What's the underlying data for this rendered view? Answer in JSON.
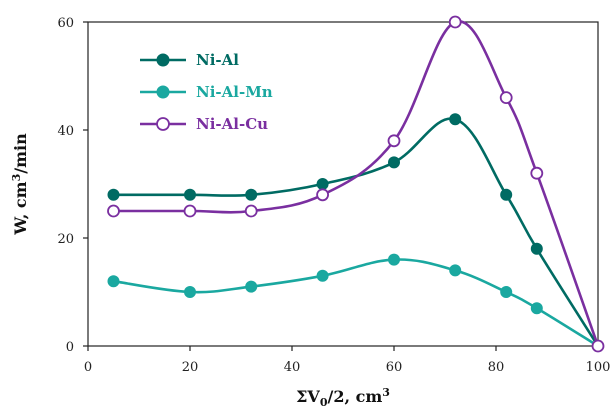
{
  "chart_data": {
    "type": "line",
    "xlabel_main": "ΣV",
    "xlabel_sub": "0",
    "xlabel_rest": "/2, cm",
    "xlabel_sup": "3",
    "ylabel_main": "W, cm",
    "ylabel_sup": "3",
    "ylabel_rest": "/min",
    "xlim": [
      0,
      100
    ],
    "ylim": [
      0,
      60
    ],
    "xticks": [
      "0",
      "20",
      "40",
      "60",
      "80",
      "100"
    ],
    "yticks": [
      "0",
      "20",
      "40",
      "60"
    ],
    "grid": false,
    "legend_position": "top-left",
    "series": [
      {
        "name": "Ni-Al",
        "color": "#006b63",
        "marker": "filled-circle",
        "x": [
          5,
          20,
          32,
          46,
          60,
          72,
          82,
          88,
          100
        ],
        "y": [
          28,
          28,
          28,
          30,
          34,
          42,
          28,
          18,
          0
        ]
      },
      {
        "name": "Ni-Al-Mn",
        "color": "#1aa8a0",
        "marker": "filled-circle",
        "x": [
          5,
          20,
          32,
          46,
          60,
          72,
          82,
          88,
          100
        ],
        "y": [
          12,
          10,
          11,
          13,
          16,
          14,
          10,
          7,
          0
        ]
      },
      {
        "name": "Ni-Al-Cu",
        "color": "#7a2fa0",
        "marker": "open-circle",
        "x": [
          5,
          20,
          32,
          46,
          60,
          72,
          82,
          88,
          100
        ],
        "y": [
          25,
          25,
          25,
          28,
          38,
          60,
          46,
          32,
          0
        ]
      }
    ]
  }
}
